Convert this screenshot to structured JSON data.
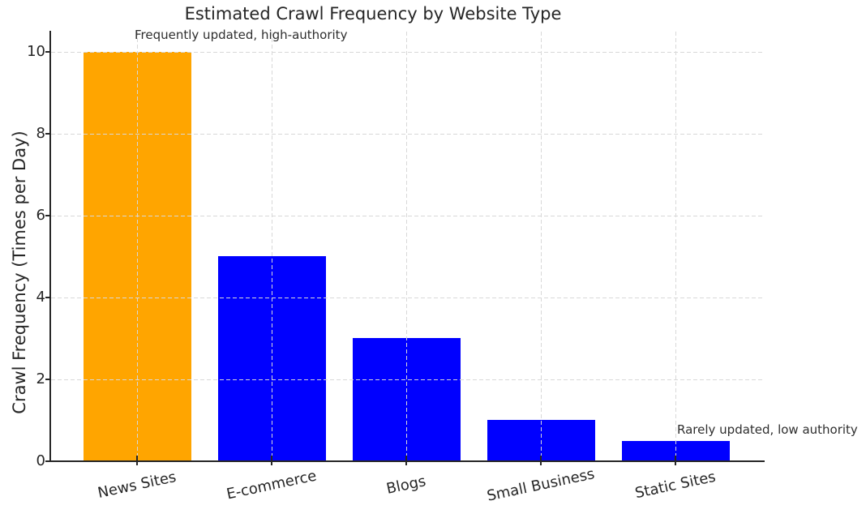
{
  "chart_data": {
    "type": "bar",
    "title": "Estimated Crawl Frequency by Website Type",
    "xlabel": "",
    "ylabel": "Crawl Frequency (Times per Day)",
    "categories": [
      "News Sites",
      "E-commerce",
      "Blogs",
      "Small Business",
      "Static Sites"
    ],
    "values": [
      10,
      5,
      3,
      1,
      0.5
    ],
    "bar_colors": [
      "#FFA500",
      "#0000FF",
      "#0000FF",
      "#0000FF",
      "#0000FF"
    ],
    "highlight_color": "#FFA500",
    "default_bar_color": "#0000FF",
    "yticks": [
      0,
      2,
      4,
      6,
      8,
      10
    ],
    "ylim": [
      0,
      10.5
    ],
    "grid": {
      "style": "dashed",
      "axes": "both",
      "color": "#d8d8d8",
      "drawn_above_bars": true
    },
    "legend": "none",
    "annotations": [
      {
        "text": "Frequently updated, high-authority",
        "target_category": "News Sites",
        "placement": "above first bar, top-left of plot"
      },
      {
        "text": "Rarely updated, low authority",
        "target_category": "Static Sites",
        "placement": "above last bar, bottom-right of plot"
      }
    ]
  }
}
